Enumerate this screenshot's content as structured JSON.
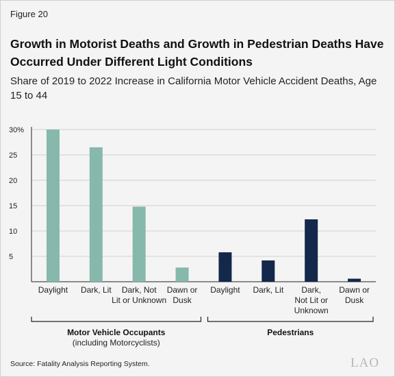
{
  "figure_label": "Figure 20",
  "source": "Source: Fatality Analysis Reporting System.",
  "logo": "LAO",
  "colors": {
    "motorist": "#86b8ab",
    "pedestrian": "#14284b"
  },
  "chart_data": {
    "type": "bar",
    "title": "Growth in Motorist Deaths and Growth in Pedestrian Deaths Have Occurred Under Different Light Conditions",
    "subtitle": "Share of 2019 to 2022 Increase in California Motor Vehicle Accident Deaths, Age 15 to 44",
    "ylim": [
      0,
      30
    ],
    "yticks": [
      {
        "value": 5,
        "label": "5"
      },
      {
        "value": 10,
        "label": "10"
      },
      {
        "value": 15,
        "label": "15"
      },
      {
        "value": 20,
        "label": "20"
      },
      {
        "value": 25,
        "label": "25"
      },
      {
        "value": 30,
        "label": "30%"
      }
    ],
    "gridlines": true,
    "groups": [
      {
        "name": "Motor Vehicle Occupants",
        "note": "(including Motorcyclists)",
        "color": "#86b8ab",
        "categories": [
          {
            "label": [
              "Daylight"
            ],
            "value": 30
          },
          {
            "label": [
              "Dark, Lit"
            ],
            "value": 26.5
          },
          {
            "label": [
              "Dark, Not",
              "Lit or Unknown"
            ],
            "value": 14.8
          },
          {
            "label": [
              "Dawn or",
              "Dusk"
            ],
            "value": 2.8
          }
        ]
      },
      {
        "name": "Pedestrians",
        "note": "",
        "color": "#14284b",
        "categories": [
          {
            "label": [
              "Daylight"
            ],
            "value": 5.8
          },
          {
            "label": [
              "Dark, Lit"
            ],
            "value": 4.2
          },
          {
            "label": [
              "Dark,",
              "Not Lit or",
              "Unknown"
            ],
            "value": 12.3
          },
          {
            "label": [
              "Dawn or",
              "Dusk"
            ],
            "value": 0.6
          }
        ]
      }
    ]
  }
}
